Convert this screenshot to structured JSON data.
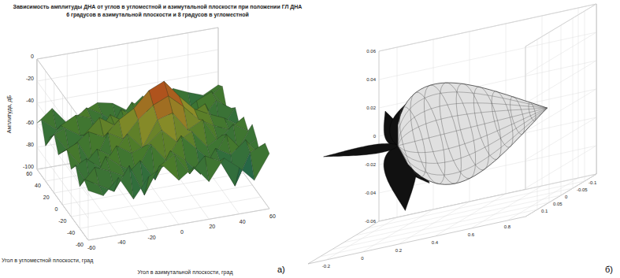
{
  "chart_data": [
    {
      "type": "surface",
      "title": [
        "Зависимость амплитуды ДНА от углов в угломестной и азимутальной плоскости при положении ГЛ ДНА",
        "6 градусов в азимутальной плоскости и 8 градусов в угломестной"
      ],
      "xlabel": "Угол в азимутальной плоскости, град",
      "ylabel": "Угол в угломестной плоскости, град",
      "zlabel": "Амплитуда, дБ",
      "x": [
        -60,
        -50,
        -40,
        -30,
        -20,
        -10,
        0,
        10,
        20,
        30,
        40,
        50,
        60
      ],
      "y": [
        -60,
        -50,
        -40,
        -30,
        -20,
        -10,
        0,
        10,
        20,
        30,
        40,
        50,
        60
      ],
      "z": [
        [
          -55,
          -62,
          -48,
          -70,
          -52,
          -45,
          -60,
          -50,
          -66,
          -47,
          -58,
          -72,
          -50
        ],
        [
          -50,
          -58,
          -66,
          -45,
          -74,
          -50,
          -42,
          -62,
          -48,
          -55,
          -80,
          -52,
          -46
        ],
        [
          -62,
          -47,
          -53,
          -60,
          -48,
          -68,
          -44,
          -55,
          -70,
          -49,
          -57,
          -46,
          -64
        ],
        [
          -48,
          -72,
          -45,
          -56,
          -64,
          -41,
          -58,
          -38,
          -52,
          -66,
          -44,
          -60,
          -53
        ],
        [
          -57,
          -50,
          -61,
          -43,
          -52,
          -47,
          -36,
          -49,
          -42,
          -58,
          -50,
          -67,
          -45
        ],
        [
          -45,
          -63,
          -49,
          -58,
          -40,
          -55,
          -32,
          -28,
          -46,
          -39,
          -61,
          -48,
          -56
        ],
        [
          -52,
          -46,
          -70,
          -42,
          -50,
          -35,
          -24,
          -18,
          -30,
          -44,
          -52,
          -58,
          -49
        ],
        [
          -60,
          -54,
          -44,
          -51,
          -38,
          -30,
          -16,
          -10,
          -26,
          -40,
          -47,
          -53,
          -62
        ],
        [
          -47,
          -66,
          -52,
          -39,
          -48,
          -42,
          -28,
          -22,
          -34,
          -50,
          -43,
          -70,
          -51
        ],
        [
          -55,
          -49,
          -58,
          -62,
          -44,
          -53,
          -40,
          -37,
          -55,
          -46,
          -64,
          -48,
          -57
        ],
        [
          -68,
          -52,
          -45,
          -50,
          -71,
          -47,
          -56,
          -43,
          -49,
          -60,
          -51,
          -45,
          -63
        ],
        [
          -50,
          -61,
          -57,
          -46,
          -54,
          -65,
          -48,
          -59,
          -45,
          -53,
          -69,
          -56,
          -48
        ],
        [
          -58,
          -47,
          -63,
          -55,
          -49,
          -52,
          -61,
          -50,
          -67,
          -48,
          -54,
          -59,
          -52
        ]
      ],
      "xlim": [
        -60,
        60
      ],
      "ylim": [
        -60,
        60
      ],
      "zlim": [
        -100,
        0
      ],
      "xticks": [
        -60,
        -40,
        -20,
        0,
        20,
        40,
        60
      ],
      "yticks": [
        -60,
        -40,
        -20,
        0,
        20,
        40,
        60
      ],
      "zticks": [
        0,
        -20,
        -40,
        -60,
        -80,
        -100
      ],
      "grid": true,
      "annotations": [
        "а)"
      ]
    },
    {
      "type": "radiation_pattern_3d",
      "xlim": [
        -0.3,
        0.9
      ],
      "ylim": [
        -0.15,
        0.15
      ],
      "zlim": [
        -0.06,
        0.06
      ],
      "xticks": [
        -0.2,
        0,
        0.2,
        0.4,
        0.6,
        0.8
      ],
      "yticks": [
        -0.1,
        -0.05,
        0,
        0.05,
        0.1
      ],
      "zticks": [
        -0.06,
        -0.04,
        -0.02,
        0,
        0.02,
        0.04,
        0.06
      ],
      "grid": true,
      "color": "#e0e0e0",
      "lobes": [
        {
          "x": 0.85,
          "y": 0.02,
          "z": 0.005
        },
        {
          "x": 0.12,
          "y": -0.02,
          "z": 0.035
        },
        {
          "x": 0.08,
          "y": 0.03,
          "z": -0.045
        },
        {
          "x": -0.28,
          "y": 0.1,
          "z": 0.01
        },
        {
          "x": 0.55,
          "y": 0.08,
          "z": -0.015
        },
        {
          "x": 0.15,
          "y": -0.08,
          "z": 0.015
        },
        {
          "x": -0.08,
          "y": -0.04,
          "z": -0.02
        },
        {
          "x": 0.1,
          "y": 0.09,
          "z": 0.02
        },
        {
          "x": 0.2,
          "y": 0.02,
          "z": -0.03
        },
        {
          "x": -0.2,
          "y": -0.1,
          "z": 0.02
        }
      ],
      "annotations": [
        "б)"
      ]
    }
  ]
}
